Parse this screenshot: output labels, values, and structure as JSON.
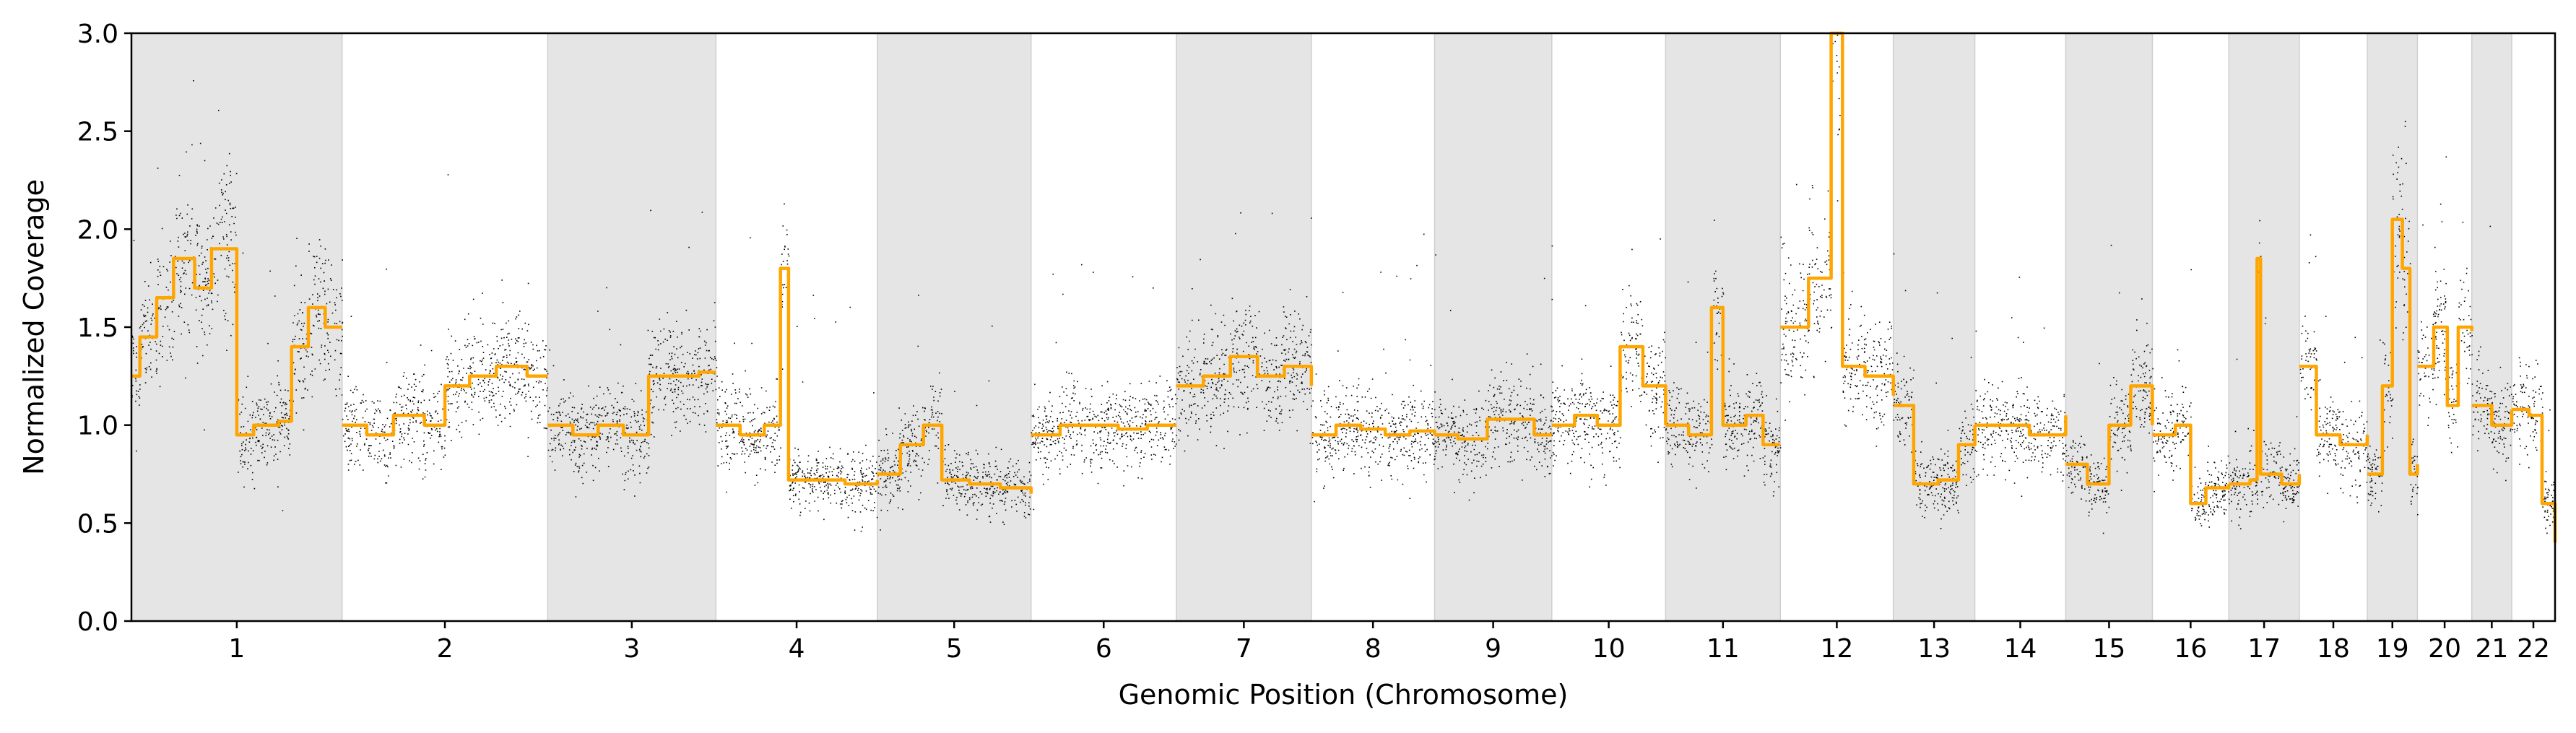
{
  "chart_data": {
    "type": "scatter",
    "title": "",
    "xlabel": "Genomic Position (Chromosome)",
    "ylabel": "Normalized Coverage",
    "ylim": [
      0.0,
      3.0
    ],
    "yticks": [
      "0.0",
      "0.5",
      "1.0",
      "1.5",
      "2.0",
      "2.5",
      "3.0"
    ],
    "grid": false,
    "legend": "none",
    "colors": {
      "points": "#000000",
      "segments": "#FFA500",
      "shade": "#e5e5e5",
      "shade_border": "#cfcfcf"
    },
    "chromosomes": [
      {
        "label": "1",
        "size": 248,
        "shaded": true,
        "segments": [
          [
            0.0,
            1.25
          ],
          [
            0.04,
            1.45
          ],
          [
            0.12,
            1.65
          ],
          [
            0.2,
            1.85
          ],
          [
            0.3,
            1.7
          ],
          [
            0.38,
            1.9
          ],
          [
            0.5,
            0.95
          ],
          [
            0.58,
            1.0
          ],
          [
            0.7,
            1.02
          ],
          [
            0.76,
            1.4
          ],
          [
            0.84,
            1.6
          ],
          [
            0.92,
            1.5
          ],
          [
            1.0,
            1.5
          ]
        ]
      },
      {
        "label": "2",
        "size": 242,
        "shaded": false,
        "segments": [
          [
            0.0,
            1.0
          ],
          [
            0.12,
            0.95
          ],
          [
            0.25,
            1.05
          ],
          [
            0.4,
            1.0
          ],
          [
            0.5,
            1.2
          ],
          [
            0.62,
            1.25
          ],
          [
            0.75,
            1.3
          ],
          [
            0.9,
            1.25
          ],
          [
            1.0,
            1.25
          ]
        ]
      },
      {
        "label": "3",
        "size": 198,
        "shaded": true,
        "segments": [
          [
            0.0,
            1.0
          ],
          [
            0.15,
            0.95
          ],
          [
            0.3,
            1.0
          ],
          [
            0.45,
            0.95
          ],
          [
            0.6,
            1.25
          ],
          [
            0.75,
            1.25
          ],
          [
            0.9,
            1.27
          ],
          [
            1.0,
            1.27
          ]
        ]
      },
      {
        "label": "4",
        "size": 190,
        "shaded": false,
        "segments": [
          [
            0.0,
            1.0
          ],
          [
            0.15,
            0.95
          ],
          [
            0.3,
            1.0
          ],
          [
            0.4,
            1.8
          ],
          [
            0.45,
            0.72
          ],
          [
            0.6,
            0.72
          ],
          [
            0.8,
            0.7
          ],
          [
            1.0,
            0.72
          ]
        ]
      },
      {
        "label": "5",
        "size": 181,
        "shaded": true,
        "segments": [
          [
            0.0,
            0.75
          ],
          [
            0.15,
            0.9
          ],
          [
            0.3,
            1.0
          ],
          [
            0.42,
            0.72
          ],
          [
            0.6,
            0.7
          ],
          [
            0.8,
            0.68
          ],
          [
            1.0,
            0.65
          ]
        ]
      },
      {
        "label": "6",
        "size": 171,
        "shaded": false,
        "segments": [
          [
            0.0,
            0.95
          ],
          [
            0.2,
            1.0
          ],
          [
            0.4,
            1.0
          ],
          [
            0.6,
            0.98
          ],
          [
            0.8,
            1.0
          ],
          [
            1.0,
            1.0
          ]
        ]
      },
      {
        "label": "7",
        "size": 159,
        "shaded": true,
        "segments": [
          [
            0.0,
            1.2
          ],
          [
            0.2,
            1.25
          ],
          [
            0.4,
            1.35
          ],
          [
            0.6,
            1.25
          ],
          [
            0.8,
            1.3
          ],
          [
            1.0,
            1.2
          ]
        ]
      },
      {
        "label": "8",
        "size": 145,
        "shaded": false,
        "segments": [
          [
            0.0,
            0.95
          ],
          [
            0.2,
            1.0
          ],
          [
            0.4,
            0.98
          ],
          [
            0.6,
            0.95
          ],
          [
            0.8,
            0.97
          ],
          [
            1.0,
            0.95
          ]
        ]
      },
      {
        "label": "9",
        "size": 138,
        "shaded": true,
        "segments": [
          [
            0.0,
            0.95
          ],
          [
            0.2,
            0.93
          ],
          [
            0.45,
            1.03
          ],
          [
            0.7,
            1.03
          ],
          [
            0.85,
            0.95
          ],
          [
            1.0,
            0.95
          ]
        ]
      },
      {
        "label": "10",
        "size": 134,
        "shaded": false,
        "segments": [
          [
            0.0,
            1.0
          ],
          [
            0.2,
            1.05
          ],
          [
            0.4,
            1.0
          ],
          [
            0.6,
            1.4
          ],
          [
            0.8,
            1.2
          ],
          [
            1.0,
            1.0
          ]
        ]
      },
      {
        "label": "11",
        "size": 135,
        "shaded": true,
        "segments": [
          [
            0.0,
            1.0
          ],
          [
            0.2,
            0.95
          ],
          [
            0.4,
            1.6
          ],
          [
            0.5,
            1.0
          ],
          [
            0.7,
            1.05
          ],
          [
            0.85,
            0.9
          ],
          [
            1.0,
            0.9
          ]
        ]
      },
      {
        "label": "12",
        "size": 133,
        "shaded": false,
        "segments": [
          [
            0.0,
            1.5
          ],
          [
            0.25,
            1.75
          ],
          [
            0.45,
            3.0
          ],
          [
            0.55,
            1.3
          ],
          [
            0.75,
            1.25
          ],
          [
            1.0,
            1.15
          ]
        ]
      },
      {
        "label": "13",
        "size": 96,
        "shaded": true,
        "segments": [
          [
            0.0,
            1.1
          ],
          [
            0.25,
            0.7
          ],
          [
            0.55,
            0.72
          ],
          [
            0.8,
            0.9
          ],
          [
            1.0,
            1.0
          ]
        ]
      },
      {
        "label": "14",
        "size": 107,
        "shaded": false,
        "segments": [
          [
            0.0,
            1.0
          ],
          [
            0.3,
            1.0
          ],
          [
            0.6,
            0.95
          ],
          [
            1.0,
            1.05
          ]
        ]
      },
      {
        "label": "15",
        "size": 102,
        "shaded": true,
        "segments": [
          [
            0.0,
            0.8
          ],
          [
            0.25,
            0.7
          ],
          [
            0.5,
            1.0
          ],
          [
            0.75,
            1.2
          ],
          [
            1.0,
            1.0
          ]
        ]
      },
      {
        "label": "16",
        "size": 90,
        "shaded": false,
        "segments": [
          [
            0.0,
            0.95
          ],
          [
            0.3,
            1.0
          ],
          [
            0.5,
            0.6
          ],
          [
            0.7,
            0.68
          ],
          [
            1.0,
            0.7
          ]
        ]
      },
      {
        "label": "17",
        "size": 83,
        "shaded": true,
        "segments": [
          [
            0.0,
            0.7
          ],
          [
            0.3,
            0.72
          ],
          [
            0.4,
            1.85
          ],
          [
            0.45,
            0.75
          ],
          [
            0.75,
            0.7
          ],
          [
            1.0,
            0.75
          ]
        ]
      },
      {
        "label": "18",
        "size": 80,
        "shaded": false,
        "segments": [
          [
            0.0,
            1.3
          ],
          [
            0.25,
            0.95
          ],
          [
            0.6,
            0.9
          ],
          [
            1.0,
            0.95
          ]
        ]
      },
      {
        "label": "19",
        "size": 59,
        "shaded": true,
        "segments": [
          [
            0.0,
            0.75
          ],
          [
            0.3,
            1.2
          ],
          [
            0.5,
            2.05
          ],
          [
            0.7,
            1.8
          ],
          [
            0.85,
            0.75
          ],
          [
            1.0,
            0.8
          ]
        ]
      },
      {
        "label": "20",
        "size": 64,
        "shaded": false,
        "segments": [
          [
            0.0,
            1.3
          ],
          [
            0.3,
            1.5
          ],
          [
            0.55,
            1.1
          ],
          [
            0.75,
            1.5
          ],
          [
            1.0,
            1.48
          ]
        ]
      },
      {
        "label": "21",
        "size": 47,
        "shaded": true,
        "segments": [
          [
            0.0,
            1.1
          ],
          [
            0.5,
            1.0
          ],
          [
            1.0,
            1.08
          ]
        ]
      },
      {
        "label": "22",
        "size": 51,
        "shaded": false,
        "segments": [
          [
            0.0,
            1.08
          ],
          [
            0.4,
            1.05
          ],
          [
            0.7,
            0.6
          ],
          [
            1.0,
            0.4
          ]
        ]
      }
    ]
  }
}
